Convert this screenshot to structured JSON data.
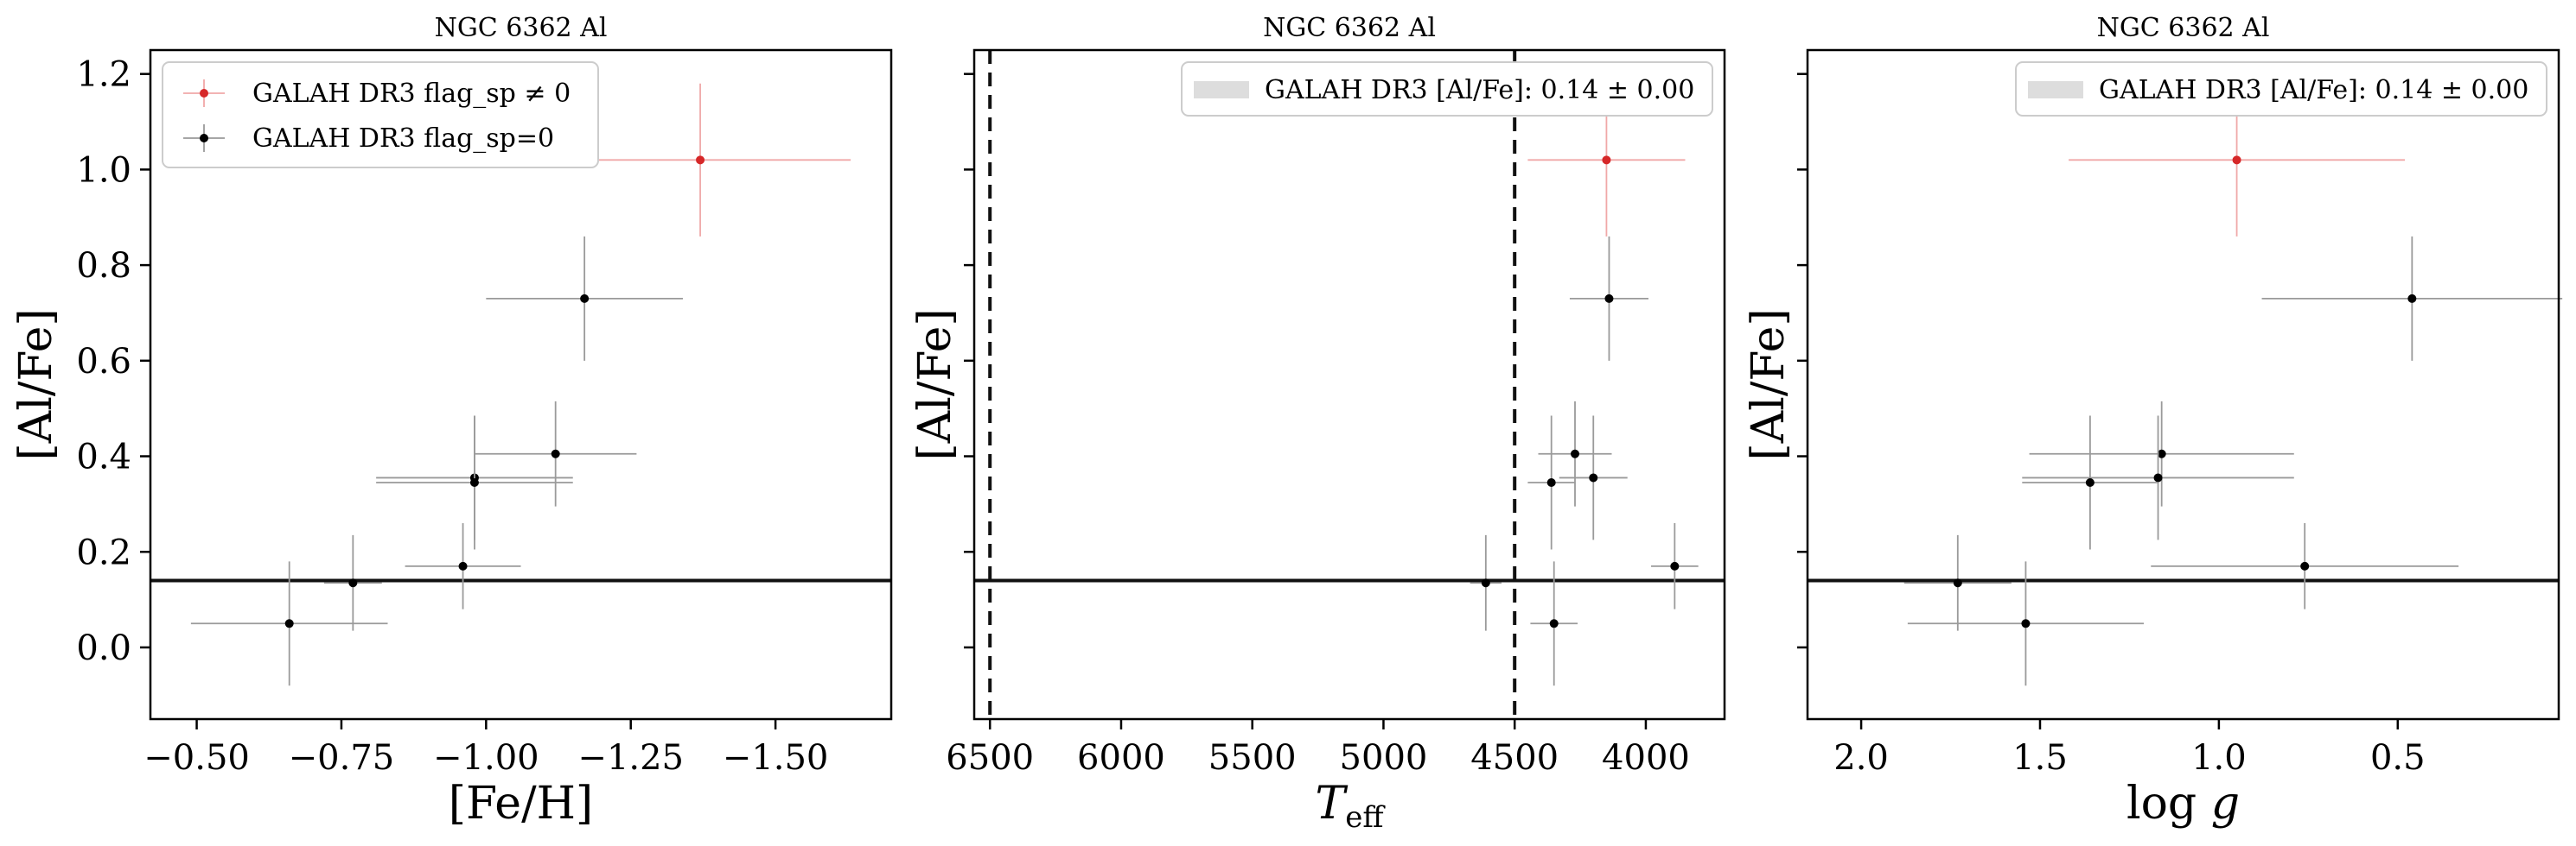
{
  "chart_data": [
    {
      "type": "scatter",
      "title": "NGC 6362 Al",
      "xlabel": "[Fe/H]",
      "ylabel": "[Al/Fe]",
      "xlim": [
        -0.42,
        -1.7
      ],
      "ylim": [
        -0.15,
        1.25
      ],
      "xticks": [
        -0.5,
        -0.75,
        -1.0,
        -1.25,
        -1.5
      ],
      "xtick_labels": [
        "−0.50",
        "−0.75",
        "−1.00",
        "−1.25",
        "−1.50"
      ],
      "yticks": [
        0.0,
        0.2,
        0.4,
        0.6,
        0.8,
        1.0,
        1.2
      ],
      "ytick_labels": [
        "0.0",
        "0.2",
        "0.4",
        "0.6",
        "0.8",
        "1.0",
        "1.2"
      ],
      "hline": 0.14,
      "vlines": [],
      "legend": {
        "placement": "top-left",
        "entries": [
          {
            "label": "GALAH DR3 flag_sp ≠ 0",
            "color": "#d62728",
            "marker": "errorbar"
          },
          {
            "label": "GALAH DR3 flag_sp=0",
            "color": "#000000",
            "marker": "errorbar"
          }
        ]
      },
      "series": [
        {
          "name": "GALAH DR3 flag_sp ≠ 0",
          "color": "#d62728",
          "points": [
            {
              "x": -1.37,
              "y": 1.02,
              "xerr": 0.26,
              "yerr": 0.16
            }
          ]
        },
        {
          "name": "GALAH DR3 flag_sp=0",
          "color": "#000000",
          "points": [
            {
              "x": -1.17,
              "y": 0.73,
              "xerr": 0.17,
              "yerr": 0.13
            },
            {
              "x": -1.12,
              "y": 0.405,
              "xerr": 0.14,
              "yerr": 0.11
            },
            {
              "x": -0.98,
              "y": 0.355,
              "xerr": 0.17,
              "yerr": 0.13
            },
            {
              "x": -0.98,
              "y": 0.345,
              "xerr": 0.17,
              "yerr": 0.14
            },
            {
              "x": -0.96,
              "y": 0.17,
              "xerr": 0.1,
              "yerr": 0.09
            },
            {
              "x": -0.77,
              "y": 0.135,
              "xerr": 0.05,
              "yerr": 0.1
            },
            {
              "x": -0.66,
              "y": 0.05,
              "xerr": 0.17,
              "yerr": 0.13
            }
          ]
        }
      ]
    },
    {
      "type": "scatter",
      "title": "NGC 6362 Al",
      "xlabel": "T_eff",
      "ylabel": "[Al/Fe]",
      "xlim": [
        6560,
        3700
      ],
      "ylim": [
        -0.15,
        1.25
      ],
      "xticks": [
        6500,
        6000,
        5500,
        5000,
        4500,
        4000
      ],
      "xtick_labels": [
        "6500",
        "6000",
        "5500",
        "5000",
        "4500",
        "4000"
      ],
      "yticks": [
        0.0,
        0.2,
        0.4,
        0.6,
        0.8,
        1.0,
        1.2
      ],
      "ytick_labels": [
        "",
        "",
        "",
        "",
        "",
        "",
        ""
      ],
      "hline": 0.14,
      "vlines": [
        6500,
        4500
      ],
      "legend": {
        "placement": "top-right",
        "entries": [
          {
            "label": "GALAH DR3 [Al/Fe]: 0.14 ± 0.00",
            "color": "#dddddd",
            "marker": "patch"
          }
        ]
      },
      "series": [
        {
          "name": "GALAH DR3 flag_sp ≠ 0",
          "color": "#d62728",
          "points": [
            {
              "x": 4150,
              "y": 1.02,
              "xerr": 300,
              "yerr": 0.16
            }
          ]
        },
        {
          "name": "GALAH DR3 flag_sp=0",
          "color": "#000000",
          "points": [
            {
              "x": 4140,
              "y": 0.73,
              "xerr": 150,
              "yerr": 0.13
            },
            {
              "x": 4270,
              "y": 0.405,
              "xerr": 140,
              "yerr": 0.11
            },
            {
              "x": 4200,
              "y": 0.355,
              "xerr": 130,
              "yerr": 0.13
            },
            {
              "x": 4360,
              "y": 0.345,
              "xerr": 90,
              "yerr": 0.14
            },
            {
              "x": 3890,
              "y": 0.17,
              "xerr": 90,
              "yerr": 0.09
            },
            {
              "x": 4610,
              "y": 0.135,
              "xerr": 60,
              "yerr": 0.1
            },
            {
              "x": 4350,
              "y": 0.05,
              "xerr": 90,
              "yerr": 0.13
            }
          ]
        }
      ]
    },
    {
      "type": "scatter",
      "title": "NGC 6362 Al",
      "xlabel": "log g",
      "ylabel": "[Al/Fe]",
      "xlim": [
        2.15,
        0.05
      ],
      "ylim": [
        -0.15,
        1.25
      ],
      "xticks": [
        2.0,
        1.5,
        1.0,
        0.5
      ],
      "xtick_labels": [
        "2.0",
        "1.5",
        "1.0",
        "0.5"
      ],
      "yticks": [
        0.0,
        0.2,
        0.4,
        0.6,
        0.8,
        1.0,
        1.2
      ],
      "ytick_labels": [
        "",
        "",
        "",
        "",
        "",
        "",
        ""
      ],
      "hline": 0.14,
      "vlines": [],
      "legend": {
        "placement": "top-right",
        "entries": [
          {
            "label": "GALAH DR3 [Al/Fe]: 0.14 ± 0.00",
            "color": "#dddddd",
            "marker": "patch"
          }
        ]
      },
      "series": [
        {
          "name": "GALAH DR3 flag_sp ≠ 0",
          "color": "#d62728",
          "points": [
            {
              "x": 0.95,
              "y": 1.02,
              "xerr": 0.47,
              "yerr": 0.16
            }
          ]
        },
        {
          "name": "GALAH DR3 flag_sp=0",
          "color": "#000000",
          "points": [
            {
              "x": 0.46,
              "y": 0.73,
              "xerr": 0.42,
              "yerr": 0.13
            },
            {
              "x": 1.16,
              "y": 0.405,
              "xerr": 0.37,
              "yerr": 0.11
            },
            {
              "x": 1.17,
              "y": 0.355,
              "xerr": 0.38,
              "yerr": 0.13
            },
            {
              "x": 1.36,
              "y": 0.345,
              "xerr": 0.19,
              "yerr": 0.14
            },
            {
              "x": 0.76,
              "y": 0.17,
              "xerr": 0.43,
              "yerr": 0.09
            },
            {
              "x": 1.73,
              "y": 0.135,
              "xerr": 0.15,
              "yerr": 0.1
            },
            {
              "x": 1.54,
              "y": 0.05,
              "xerr": 0.33,
              "yerr": 0.13
            }
          ]
        }
      ]
    }
  ]
}
